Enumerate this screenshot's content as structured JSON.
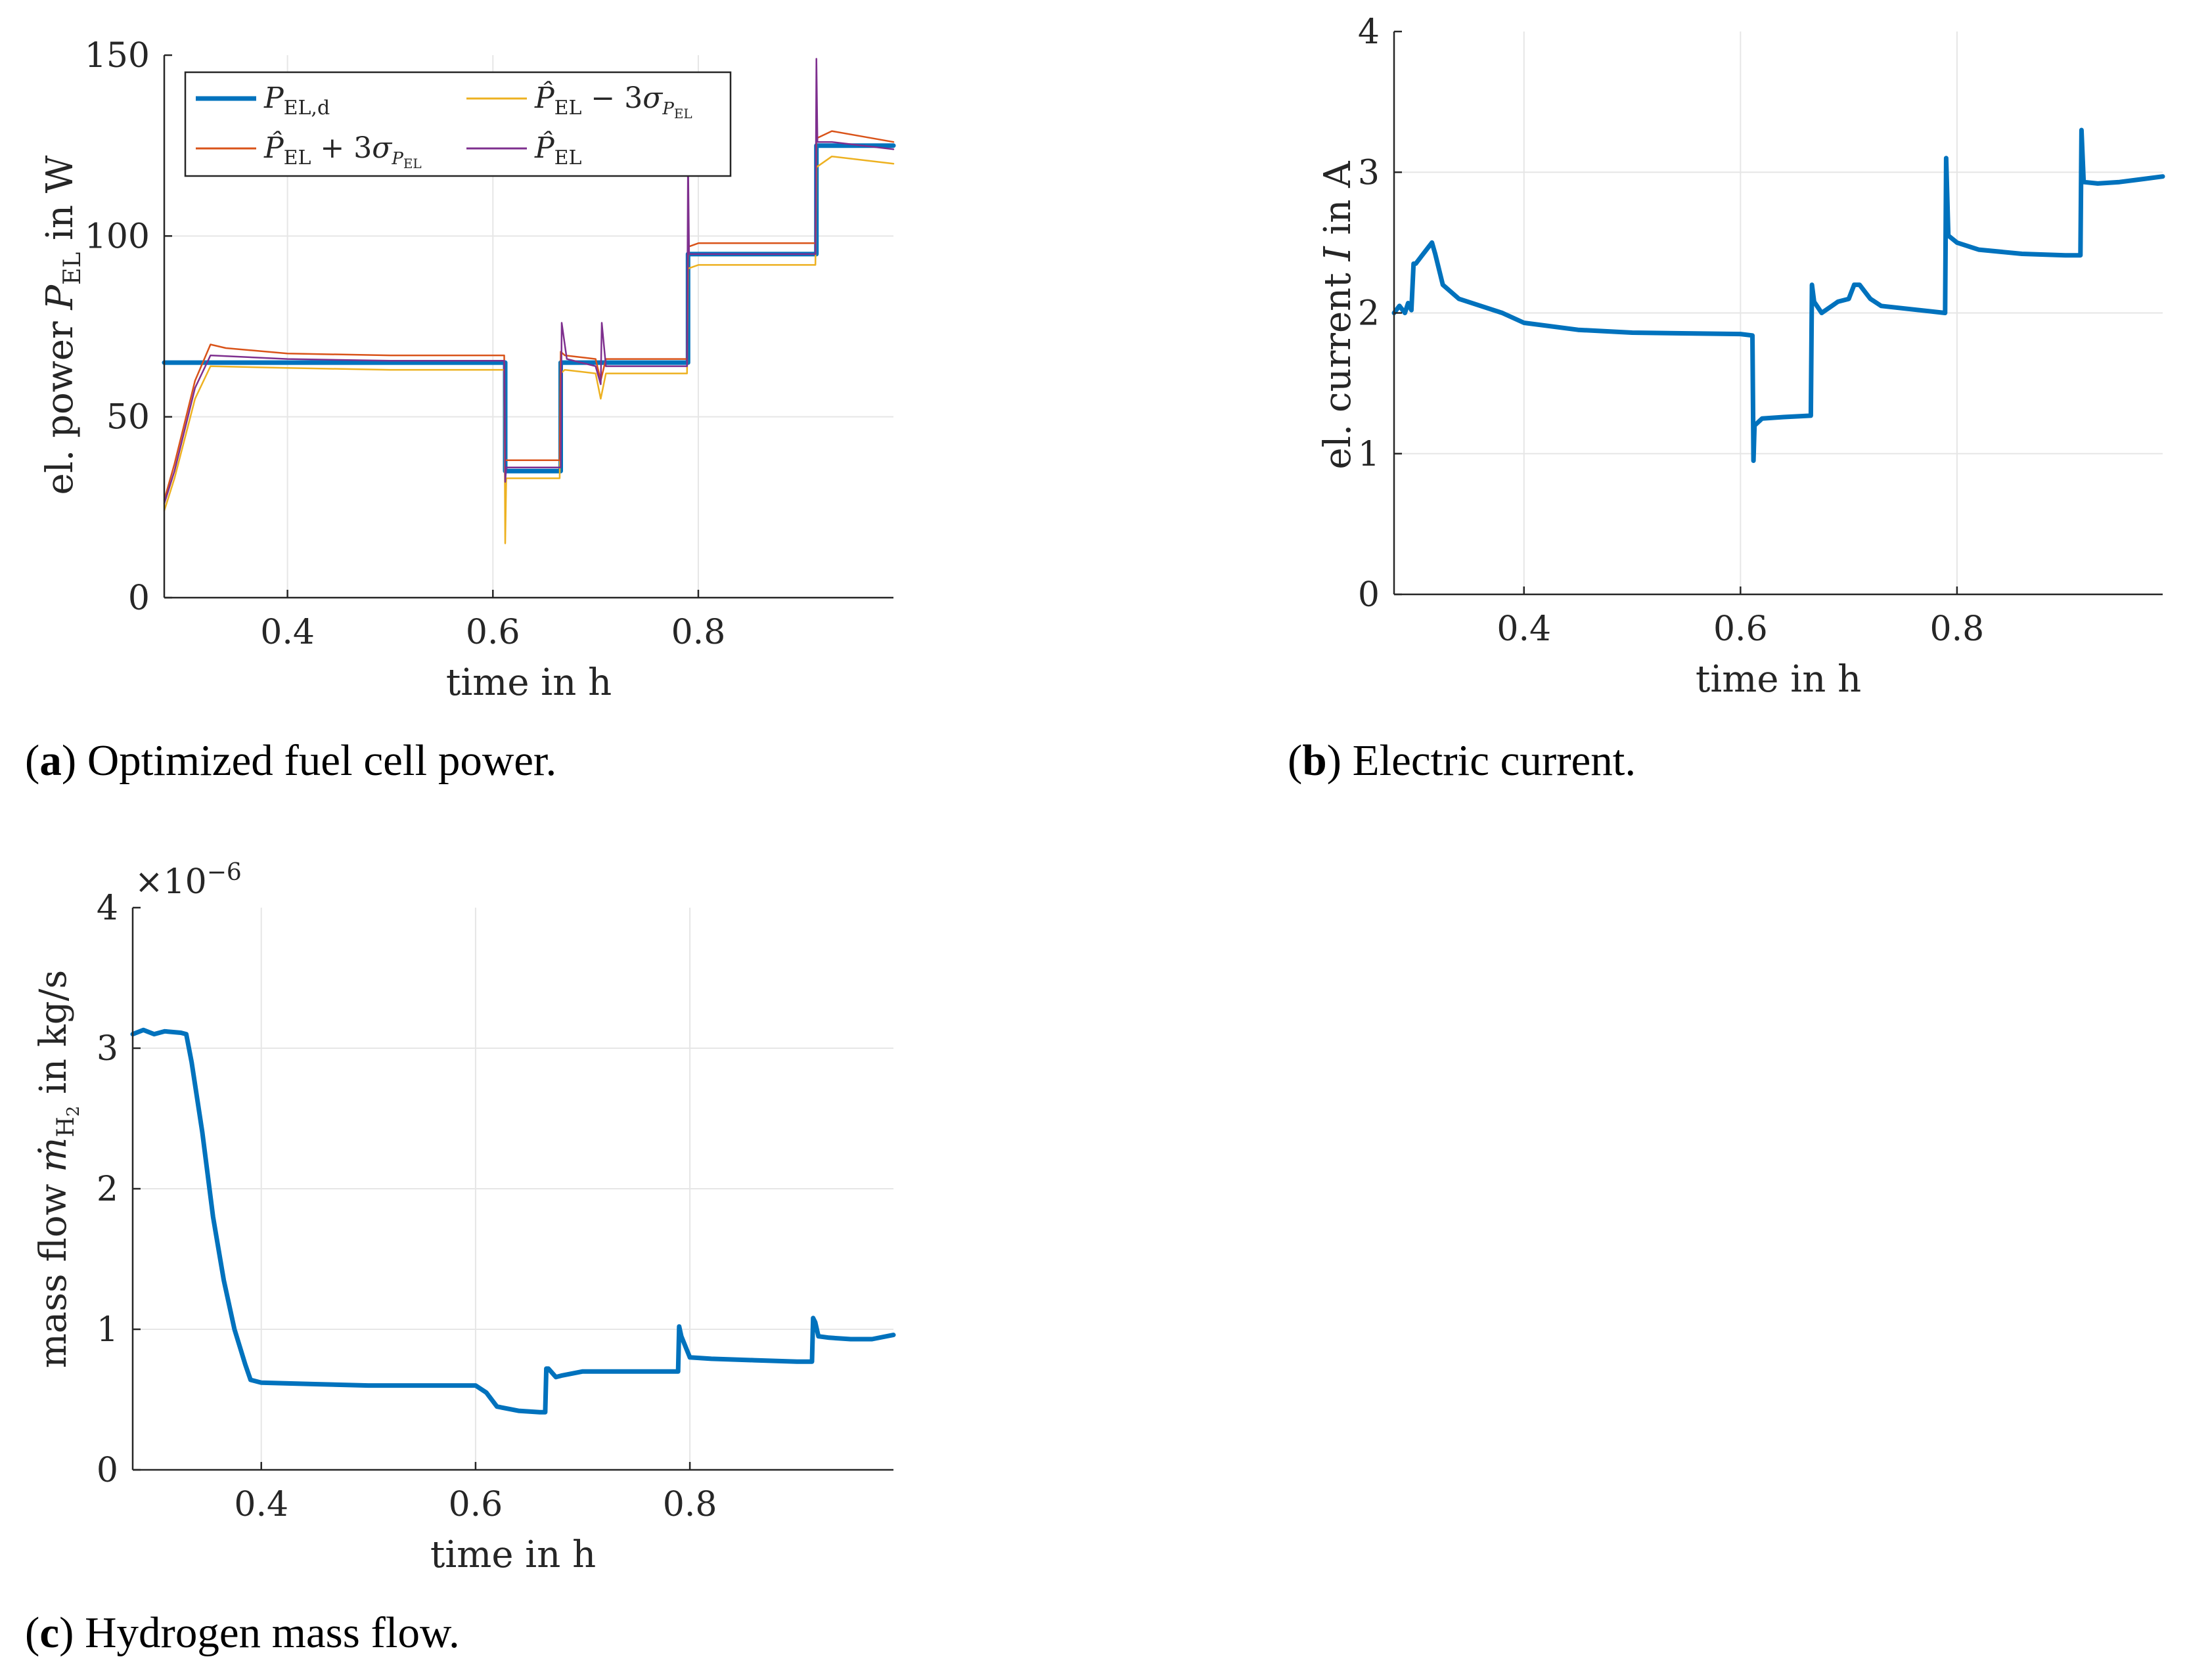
{
  "colors": {
    "blue": "#0072BD",
    "red": "#D95319",
    "yellow": "#EDB120",
    "purple": "#7E2F8E",
    "grid": "#e6e6e6",
    "axis": "#262626"
  },
  "captions": {
    "a": {
      "letter": "a",
      "text": "Optimized fuel cell power."
    },
    "b": {
      "letter": "b",
      "text": "Electric current."
    },
    "c": {
      "letter": "c",
      "text": "Hydrogen mass flow."
    }
  },
  "chart_data": [
    {
      "id": "a",
      "type": "line",
      "title": "",
      "xlabel": "time in h",
      "ylabel": "el. power P_EL in W",
      "xlim": [
        0.28,
        0.99
      ],
      "ylim": [
        0,
        150
      ],
      "xticks": [
        0.4,
        0.6,
        0.8
      ],
      "xtick_labels": [
        "0.4",
        "0.6",
        "0.8"
      ],
      "yticks": [
        0,
        50,
        100,
        150
      ],
      "ytick_labels": [
        "0",
        "50",
        "100",
        "150"
      ],
      "grid": true,
      "legend": {
        "position": "top-left",
        "columns": 2,
        "entries": [
          "P_EL,d",
          "P̂_EL − 3σ_PEL",
          "P̂_EL + 3σ_PEL",
          "P̂_EL"
        ]
      },
      "series": [
        {
          "name": "P_EL,d",
          "color": "blue",
          "width": 7,
          "x": [
            0.28,
            0.612,
            0.612,
            0.666,
            0.666,
            0.79,
            0.79,
            0.915,
            0.915,
            0.99
          ],
          "y": [
            65,
            65,
            35,
            35,
            65,
            65,
            95,
            95,
            125,
            125
          ]
        },
        {
          "name": "P̂_EL − 3σ_PEL",
          "color": "yellow",
          "width": 2.5,
          "x": [
            0.28,
            0.29,
            0.31,
            0.325,
            0.4,
            0.5,
            0.611,
            0.612,
            0.613,
            0.62,
            0.665,
            0.666,
            0.67,
            0.7,
            0.705,
            0.71,
            0.72,
            0.789,
            0.79,
            0.8,
            0.914,
            0.915,
            0.93,
            0.99
          ],
          "y": [
            24,
            33,
            55,
            64,
            63.5,
            63,
            63,
            15,
            33,
            33,
            33,
            62,
            63,
            62,
            55,
            62,
            62,
            62,
            91,
            92,
            92,
            119,
            122,
            120
          ]
        },
        {
          "name": "P̂_EL + 3σ_PEL",
          "color": "red",
          "width": 2.5,
          "x": [
            0.28,
            0.29,
            0.31,
            0.325,
            0.34,
            0.4,
            0.5,
            0.611,
            0.612,
            0.613,
            0.62,
            0.665,
            0.666,
            0.67,
            0.7,
            0.705,
            0.71,
            0.72,
            0.789,
            0.79,
            0.8,
            0.914,
            0.915,
            0.93,
            0.99
          ],
          "y": [
            27,
            37,
            60,
            70,
            69,
            67.5,
            67,
            67,
            38,
            38,
            38,
            38,
            68,
            67,
            66,
            60,
            66,
            66,
            66,
            97,
            98,
            98,
            127,
            129,
            126
          ]
        },
        {
          "name": "P̂_EL",
          "color": "purple",
          "width": 2.5,
          "x": [
            0.28,
            0.29,
            0.31,
            0.325,
            0.4,
            0.5,
            0.611,
            0.612,
            0.613,
            0.62,
            0.665,
            0.666,
            0.667,
            0.672,
            0.7,
            0.705,
            0.706,
            0.71,
            0.72,
            0.789,
            0.79,
            0.791,
            0.8,
            0.914,
            0.915,
            0.916,
            0.93,
            0.99
          ],
          "y": [
            26,
            35,
            58,
            67,
            66,
            65.5,
            65.5,
            32,
            36,
            36,
            36,
            36,
            76,
            66,
            64,
            59,
            76,
            64,
            64,
            64,
            122,
            95,
            95,
            95,
            149,
            126,
            126,
            124
          ]
        }
      ]
    },
    {
      "id": "b",
      "type": "line",
      "title": "",
      "xlabel": "time in h",
      "ylabel": "el. current I in A",
      "xlim": [
        0.28,
        0.99
      ],
      "ylim": [
        0,
        4
      ],
      "xticks": [
        0.4,
        0.6,
        0.8
      ],
      "xtick_labels": [
        "0.4",
        "0.6",
        "0.8"
      ],
      "yticks": [
        0,
        1,
        2,
        3,
        4
      ],
      "ytick_labels": [
        "0",
        "1",
        "2",
        "3",
        "4"
      ],
      "grid": true,
      "series": [
        {
          "name": "I",
          "color": "blue",
          "width": 7,
          "x": [
            0.28,
            0.285,
            0.29,
            0.293,
            0.296,
            0.298,
            0.3,
            0.305,
            0.31,
            0.315,
            0.318,
            0.325,
            0.34,
            0.38,
            0.4,
            0.45,
            0.5,
            0.6,
            0.611,
            0.612,
            0.613,
            0.62,
            0.64,
            0.665,
            0.666,
            0.668,
            0.675,
            0.69,
            0.7,
            0.705,
            0.71,
            0.715,
            0.72,
            0.73,
            0.789,
            0.79,
            0.792,
            0.8,
            0.82,
            0.86,
            0.9,
            0.914,
            0.915,
            0.917,
            0.93,
            0.95,
            0.97,
            0.99
          ],
          "y": [
            2.0,
            2.05,
            2.0,
            2.07,
            2.02,
            2.35,
            2.35,
            2.4,
            2.45,
            2.5,
            2.42,
            2.2,
            2.1,
            2.0,
            1.93,
            1.88,
            1.86,
            1.85,
            1.84,
            0.95,
            1.2,
            1.25,
            1.26,
            1.27,
            2.2,
            2.08,
            2.0,
            2.08,
            2.1,
            2.2,
            2.2,
            2.15,
            2.1,
            2.05,
            2.0,
            3.1,
            2.55,
            2.5,
            2.45,
            2.42,
            2.41,
            2.41,
            3.3,
            2.93,
            2.92,
            2.93,
            2.95,
            2.97
          ]
        }
      ]
    },
    {
      "id": "c",
      "type": "line",
      "title": "",
      "xlabel": "time in h",
      "ylabel": "mass flow ṁ_H2 in kg/s",
      "exponent_label": "×10⁻⁶",
      "xlim": [
        0.28,
        0.99
      ],
      "ylim": [
        0,
        4
      ],
      "xticks": [
        0.4,
        0.6,
        0.8
      ],
      "xtick_labels": [
        "0.4",
        "0.6",
        "0.8"
      ],
      "yticks": [
        0,
        1,
        2,
        3,
        4
      ],
      "ytick_labels": [
        "0",
        "1",
        "2",
        "3",
        "4"
      ],
      "grid": true,
      "series": [
        {
          "name": "mdot_H2",
          "color": "blue",
          "width": 7,
          "x": [
            0.28,
            0.29,
            0.3,
            0.31,
            0.325,
            0.33,
            0.335,
            0.345,
            0.355,
            0.365,
            0.375,
            0.385,
            0.39,
            0.4,
            0.45,
            0.5,
            0.55,
            0.6,
            0.61,
            0.62,
            0.64,
            0.66,
            0.665,
            0.666,
            0.668,
            0.675,
            0.68,
            0.7,
            0.75,
            0.789,
            0.79,
            0.792,
            0.8,
            0.82,
            0.86,
            0.9,
            0.914,
            0.915,
            0.917,
            0.92,
            0.93,
            0.95,
            0.97,
            0.99
          ],
          "y": [
            3.1,
            3.13,
            3.1,
            3.12,
            3.11,
            3.1,
            2.9,
            2.4,
            1.8,
            1.35,
            1.0,
            0.75,
            0.64,
            0.62,
            0.61,
            0.6,
            0.6,
            0.6,
            0.55,
            0.45,
            0.42,
            0.41,
            0.41,
            0.72,
            0.72,
            0.66,
            0.67,
            0.7,
            0.7,
            0.7,
            1.02,
            0.95,
            0.8,
            0.79,
            0.78,
            0.77,
            0.77,
            1.08,
            1.05,
            0.95,
            0.94,
            0.93,
            0.93,
            0.96
          ]
        }
      ]
    }
  ]
}
